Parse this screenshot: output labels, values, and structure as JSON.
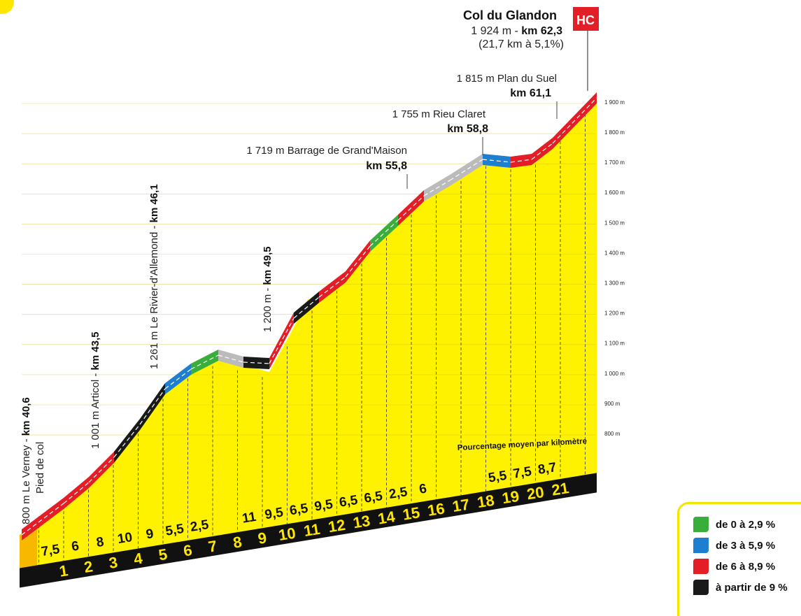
{
  "summit": {
    "name": "Col du Glandon",
    "line1_alt": "1 924 m - ",
    "line1_km": "km 62,3",
    "line2": "(21,7 km à 5,1%)",
    "category": "HC"
  },
  "waypoints": [
    {
      "label": "1 815 m Plan du Suel",
      "km_label": "km 61,1"
    },
    {
      "label": "1 755 m Rieu Claret",
      "km_label": "km 58,8"
    },
    {
      "label": "1 719 m Barrage de Grand'Maison",
      "km_label": "km 55,8"
    }
  ],
  "vertical_labels": [
    {
      "text": "800 m Le Verney - ",
      "km": "km 40,6",
      "sub": "Pied de col"
    },
    {
      "text": "1 001 m Articol - ",
      "km": "km 43,5"
    },
    {
      "text": "1 261 m Le Rivier-d'Allemond - ",
      "km": "km 46,1"
    },
    {
      "text": "1 200 m - ",
      "km": "km 49,5"
    }
  ],
  "caption": "Pourcentage moyen par kilomètre",
  "legend": [
    {
      "label": "de 0 à 2,9 %",
      "color": "#3aae3a",
      "icon": "green-swatch"
    },
    {
      "label": "de 3 à 5,9 %",
      "color": "#1e7fd0",
      "icon": "blue-swatch"
    },
    {
      "label": "de 6 à 8,9 %",
      "color": "#e31e26",
      "icon": "red-swatch"
    },
    {
      "label": "à partir de 9 %",
      "color": "#1a1a1a",
      "icon": "black-swatch"
    }
  ],
  "chart_data": {
    "type": "area",
    "title": "Col du Glandon",
    "ylabel": "",
    "ylim": [
      800,
      1900
    ],
    "y_ticks": [
      "800 m",
      "900 m",
      "1 000 m",
      "1 100 m",
      "1 200 m",
      "1 300 m",
      "1 400 m",
      "1 500 m",
      "1 600 m",
      "1 700 m",
      "1 800 m",
      "1 900 m"
    ],
    "x_ticks": [
      "1",
      "2",
      "3",
      "4",
      "5",
      "6",
      "7",
      "8",
      "9",
      "10",
      "11",
      "12",
      "13",
      "14",
      "15",
      "16",
      "17",
      "18",
      "19",
      "20",
      "21"
    ],
    "gradients": [
      "7,5",
      "6",
      "8",
      "10",
      "9",
      "5,5",
      "2,5",
      "",
      "11",
      "9,5",
      "6,5",
      "9,5",
      "6,5",
      "6,5",
      "2,5",
      "6",
      "",
      "",
      "5,5",
      "7,5",
      "8,7"
    ],
    "km_gradient_values": [
      7.5,
      6,
      8,
      10,
      9,
      5.5,
      2.5,
      -1.5,
      11,
      9.5,
      6.5,
      9.5,
      6.5,
      6.5,
      2.5,
      6,
      -0.5,
      -1,
      5.5,
      7.5,
      8.7
    ],
    "colors": {
      "green": "#3aae3a",
      "blue": "#1e7fd0",
      "red": "#e31e26",
      "black": "#1a1a1a",
      "fill": "#fff200"
    }
  }
}
